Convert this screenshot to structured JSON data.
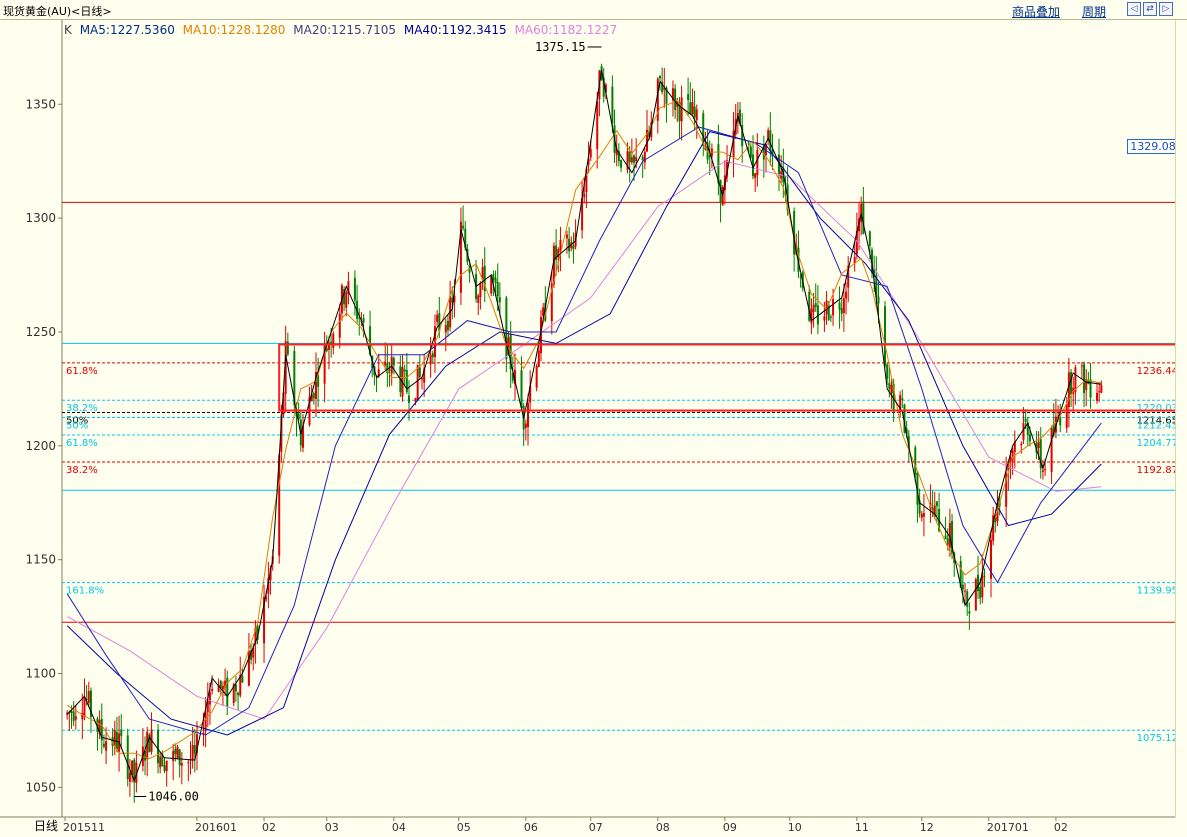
{
  "window": {
    "title": "现货黄金(AU)<日线>",
    "menu_overlay": "商品叠加",
    "menu_period": "周期"
  },
  "colors": {
    "background": "#fffff0",
    "up_candle": "#e00000",
    "down_candle": "#008000",
    "ma5": "#000000",
    "ma10": "#e08000",
    "ma20": "#2020c0",
    "ma40": "#0000a0",
    "ma60": "#e080e0",
    "fib_red": "#e00000",
    "fib_cyan": "#00c8e8",
    "highlight_box": "#ff2020"
  },
  "legend": {
    "k": "K",
    "ma5": "MA5:1227.5360",
    "ma10": "MA10:1228.1280",
    "ma20": "MA20:1215.7105",
    "ma40": "MA40:1192.3415",
    "ma60": "MA60:1182.1227"
  },
  "current_price": "1329.08",
  "xaxis_label": "日线",
  "chart_data": {
    "type": "candlestick",
    "ylim": [
      1037,
      1387
    ],
    "y_ticks": [
      1050,
      1100,
      1150,
      1200,
      1250,
      1300,
      1350
    ],
    "x_ticks": [
      {
        "label": "201511",
        "date": "2015-11-01"
      },
      {
        "label": "201601",
        "date": "2016-01-01"
      },
      {
        "label": "02",
        "date": "2016-02-01"
      },
      {
        "label": "03",
        "date": "2016-03-01"
      },
      {
        "label": "04",
        "date": "2016-04-01"
      },
      {
        "label": "05",
        "date": "2016-05-01"
      },
      {
        "label": "06",
        "date": "2016-06-01"
      },
      {
        "label": "07",
        "date": "2016-07-01"
      },
      {
        "label": "08",
        "date": "2016-08-01"
      },
      {
        "label": "09",
        "date": "2016-09-01"
      },
      {
        "label": "10",
        "date": "2016-10-01"
      },
      {
        "label": "11",
        "date": "2016-11-01"
      },
      {
        "label": "12",
        "date": "2016-12-01"
      },
      {
        "label": "201701",
        "date": "2017-01-01"
      },
      {
        "label": "02",
        "date": "2017-02-01"
      }
    ],
    "annotations": [
      {
        "text": "1375.15",
        "price": 1375.15,
        "date": "2016-07-06"
      },
      {
        "text": "1046.00",
        "price": 1046.0,
        "date": "2015-12-03"
      }
    ],
    "horizontal_lines": [
      {
        "price": 1306.9,
        "style": "solid",
        "color": "#e00000"
      },
      {
        "price": 1245.0,
        "style": "solid",
        "color": "#00c8e8"
      },
      {
        "price": 1180.5,
        "style": "solid",
        "color": "#00c8e8"
      },
      {
        "price": 1122.5,
        "style": "solid",
        "color": "#e00000"
      }
    ],
    "fib_levels": [
      {
        "label": "61.8%",
        "value_label": "1236.44",
        "price": 1236.44,
        "color": "#e00000"
      },
      {
        "label": "38.2%",
        "value_label": "1220.03",
        "price": 1220.03,
        "color": "#00c8e8"
      },
      {
        "label": "50%",
        "value_label": "1214.65",
        "price": 1214.65,
        "color": "#000000"
      },
      {
        "label": "50%",
        "value_label": "1212.43",
        "price": 1212.43,
        "color": "#00c8e8"
      },
      {
        "label": "61.8%",
        "value_label": "1204.77",
        "price": 1204.77,
        "color": "#00c8e8"
      },
      {
        "label": "38.2%",
        "value_label": "1192.87",
        "price": 1192.87,
        "color": "#e00000"
      },
      {
        "label": "161.8%",
        "value_label": "1139.95",
        "price": 1139.95,
        "color": "#00c8e8"
      },
      {
        "label": "",
        "value_label": "1075.12",
        "price": 1075.12,
        "color": "#00c8e8"
      }
    ],
    "highlight_box": {
      "date_from": "2016-02-08",
      "date_to": "2017-02-28",
      "price_low": 1215.5,
      "price_high": 1244.5
    },
    "price_path": [
      [
        "2015-11-02",
        1082
      ],
      [
        "2015-11-10",
        1090
      ],
      [
        "2015-11-18",
        1072
      ],
      [
        "2015-11-26",
        1070
      ],
      [
        "2015-12-03",
        1053
      ],
      [
        "2015-12-10",
        1072
      ],
      [
        "2015-12-17",
        1063
      ],
      [
        "2015-12-31",
        1062
      ],
      [
        "2016-01-08",
        1098
      ],
      [
        "2016-01-15",
        1090
      ],
      [
        "2016-01-22",
        1100
      ],
      [
        "2016-01-29",
        1116
      ],
      [
        "2016-02-05",
        1150
      ],
      [
        "2016-02-11",
        1240
      ],
      [
        "2016-02-18",
        1205
      ],
      [
        "2016-02-25",
        1230
      ],
      [
        "2016-03-03",
        1250
      ],
      [
        "2016-03-10",
        1270
      ],
      [
        "2016-03-17",
        1255
      ],
      [
        "2016-03-24",
        1230
      ],
      [
        "2016-03-31",
        1235
      ],
      [
        "2016-04-07",
        1225
      ],
      [
        "2016-04-14",
        1230
      ],
      [
        "2016-04-21",
        1252
      ],
      [
        "2016-04-28",
        1260
      ],
      [
        "2016-05-02",
        1295
      ],
      [
        "2016-05-09",
        1270
      ],
      [
        "2016-05-16",
        1275
      ],
      [
        "2016-05-23",
        1245
      ],
      [
        "2016-05-31",
        1212
      ],
      [
        "2016-06-07",
        1245
      ],
      [
        "2016-06-14",
        1282
      ],
      [
        "2016-06-24",
        1290
      ],
      [
        "2016-07-06",
        1365
      ],
      [
        "2016-07-13",
        1330
      ],
      [
        "2016-07-20",
        1320
      ],
      [
        "2016-07-28",
        1335
      ],
      [
        "2016-08-02",
        1360
      ],
      [
        "2016-08-10",
        1350
      ],
      [
        "2016-08-17",
        1345
      ],
      [
        "2016-08-24",
        1332
      ],
      [
        "2016-08-31",
        1310
      ],
      [
        "2016-09-07",
        1345
      ],
      [
        "2016-09-14",
        1322
      ],
      [
        "2016-09-21",
        1335
      ],
      [
        "2016-09-28",
        1320
      ],
      [
        "2016-10-04",
        1285
      ],
      [
        "2016-10-11",
        1255
      ],
      [
        "2016-10-18",
        1260
      ],
      [
        "2016-10-25",
        1265
      ],
      [
        "2016-11-03",
        1302
      ],
      [
        "2016-11-08",
        1280
      ],
      [
        "2016-11-15",
        1225
      ],
      [
        "2016-11-22",
        1215
      ],
      [
        "2016-11-30",
        1175
      ],
      [
        "2016-12-07",
        1170
      ],
      [
        "2016-12-14",
        1160
      ],
      [
        "2016-12-21",
        1130
      ],
      [
        "2016-12-28",
        1140
      ],
      [
        "2017-01-05",
        1175
      ],
      [
        "2017-01-12",
        1200
      ],
      [
        "2017-01-19",
        1210
      ],
      [
        "2017-01-26",
        1190
      ],
      [
        "2017-02-02",
        1212
      ],
      [
        "2017-02-09",
        1232
      ],
      [
        "2017-02-15",
        1228
      ],
      [
        "2017-02-22",
        1227
      ]
    ],
    "ma_paths": {
      "ma20": [
        [
          "2015-11-02",
          1135
        ],
        [
          "2015-11-20",
          1108
        ],
        [
          "2015-12-10",
          1080
        ],
        [
          "2016-01-05",
          1073
        ],
        [
          "2016-01-25",
          1085
        ],
        [
          "2016-02-15",
          1130
        ],
        [
          "2016-03-05",
          1200
        ],
        [
          "2016-03-25",
          1240
        ],
        [
          "2016-04-15",
          1240
        ],
        [
          "2016-05-05",
          1255
        ],
        [
          "2016-05-25",
          1250
        ],
        [
          "2016-06-15",
          1250
        ],
        [
          "2016-07-05",
          1290
        ],
        [
          "2016-07-25",
          1325
        ],
        [
          "2016-08-20",
          1340
        ],
        [
          "2016-09-15",
          1333
        ],
        [
          "2016-10-05",
          1320
        ],
        [
          "2016-10-25",
          1275
        ],
        [
          "2016-11-15",
          1270
        ],
        [
          "2016-12-01",
          1225
        ],
        [
          "2016-12-20",
          1165
        ],
        [
          "2017-01-05",
          1140
        ],
        [
          "2017-01-25",
          1175
        ],
        [
          "2017-02-22",
          1210
        ]
      ],
      "ma40": [
        [
          "2015-11-02",
          1121
        ],
        [
          "2015-11-25",
          1100
        ],
        [
          "2015-12-20",
          1080
        ],
        [
          "2016-01-15",
          1073
        ],
        [
          "2016-02-10",
          1085
        ],
        [
          "2016-03-05",
          1150
        ],
        [
          "2016-03-30",
          1205
        ],
        [
          "2016-04-25",
          1235
        ],
        [
          "2016-05-20",
          1250
        ],
        [
          "2016-06-15",
          1245
        ],
        [
          "2016-07-10",
          1258
        ],
        [
          "2016-08-05",
          1305
        ],
        [
          "2016-08-25",
          1338
        ],
        [
          "2016-09-20",
          1332
        ],
        [
          "2016-10-15",
          1300
        ],
        [
          "2016-11-05",
          1280
        ],
        [
          "2016-11-25",
          1255
        ],
        [
          "2016-12-20",
          1200
        ],
        [
          "2017-01-10",
          1165
        ],
        [
          "2017-01-30",
          1170
        ],
        [
          "2017-02-22",
          1192
        ]
      ],
      "ma60": [
        [
          "2015-11-02",
          1125
        ],
        [
          "2015-12-01",
          1110
        ],
        [
          "2016-01-01",
          1090
        ],
        [
          "2016-02-01",
          1080
        ],
        [
          "2016-03-01",
          1120
        ],
        [
          "2016-04-01",
          1175
        ],
        [
          "2016-05-01",
          1225
        ],
        [
          "2016-06-01",
          1245
        ],
        [
          "2016-07-01",
          1265
        ],
        [
          "2016-08-01",
          1305
        ],
        [
          "2016-09-01",
          1325
        ],
        [
          "2016-10-01",
          1318
        ],
        [
          "2016-11-01",
          1290
        ],
        [
          "2016-12-01",
          1245
        ],
        [
          "2017-01-01",
          1195
        ],
        [
          "2017-02-01",
          1180
        ],
        [
          "2017-02-22",
          1182
        ]
      ]
    }
  }
}
